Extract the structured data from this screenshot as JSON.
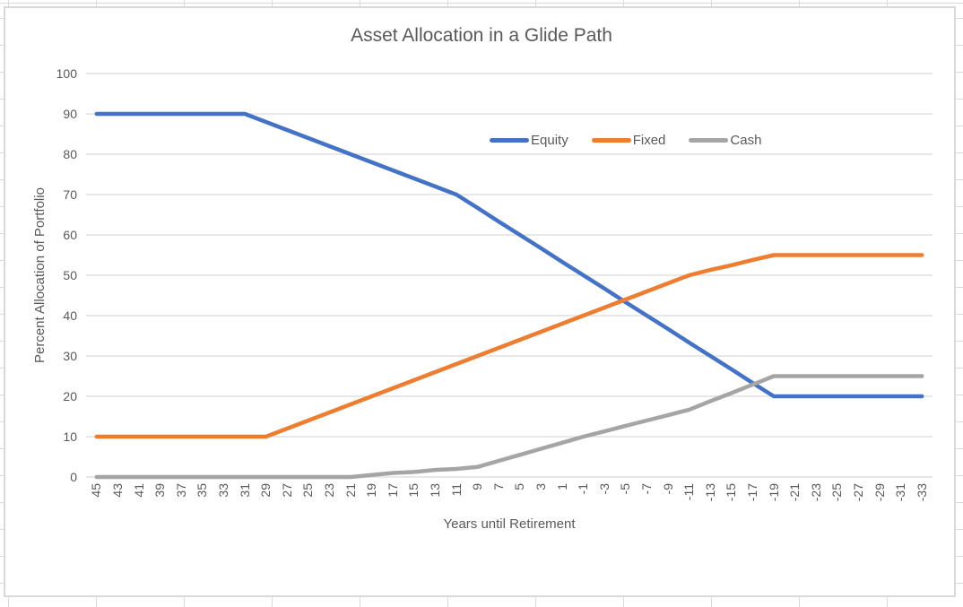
{
  "chart_data": {
    "type": "line",
    "title": "Asset Allocation in a Glide Path",
    "xlabel": "Years until Retirement",
    "ylabel": "Percent Allocation of Portfolio",
    "ylim": [
      0,
      100
    ],
    "ytick_labels": [
      0,
      10,
      20,
      30,
      40,
      50,
      60,
      70,
      80,
      90,
      100
    ],
    "grid": true,
    "legend_position": "inside-top-right",
    "categories": [
      "45",
      "43",
      "41",
      "39",
      "37",
      "35",
      "33",
      "31",
      "29",
      "27",
      "25",
      "23",
      "21",
      "19",
      "17",
      "15",
      "13",
      "11",
      "9",
      "7",
      "5",
      "3",
      "1",
      "-1",
      "-3",
      "-5",
      "-7",
      "-9",
      "-11",
      "-13",
      "-15",
      "-17",
      "-19",
      "-21",
      "-23",
      "-25",
      "-27",
      "-29",
      "-31",
      "-33"
    ],
    "series": [
      {
        "name": "Equity",
        "color": "#4472C4",
        "values": [
          90,
          90,
          90,
          90,
          90,
          90,
          90,
          90,
          88,
          86,
          84,
          82,
          80,
          78,
          76,
          74,
          72,
          70,
          66.7,
          63.3,
          60,
          56.7,
          53.3,
          50,
          46.7,
          43.3,
          40,
          36.7,
          33.3,
          30,
          26.7,
          23.3,
          20,
          20,
          20,
          20,
          20,
          20,
          20,
          20
        ]
      },
      {
        "name": "Fixed",
        "color": "#ED7D31",
        "values": [
          10,
          10,
          10,
          10,
          10,
          10,
          10,
          10,
          10,
          12,
          14,
          16,
          18,
          20,
          22,
          24,
          26,
          28,
          30,
          32,
          34,
          36,
          38,
          40,
          42,
          44,
          46,
          48,
          50,
          51.3,
          52.5,
          53.8,
          55,
          55,
          55,
          55,
          55,
          55,
          55,
          55
        ]
      },
      {
        "name": "Cash",
        "color": "#A5A5A5",
        "values": [
          0,
          0,
          0,
          0,
          0,
          0,
          0,
          0,
          0,
          0,
          0,
          0,
          0,
          0.5,
          1,
          1.25,
          1.75,
          2,
          2.5,
          4,
          5.5,
          7,
          8.5,
          10,
          11.3,
          12.7,
          14,
          15.3,
          16.7,
          18.8,
          20.8,
          22.9,
          25,
          25,
          25,
          25,
          25,
          25,
          25,
          25
        ]
      }
    ]
  }
}
